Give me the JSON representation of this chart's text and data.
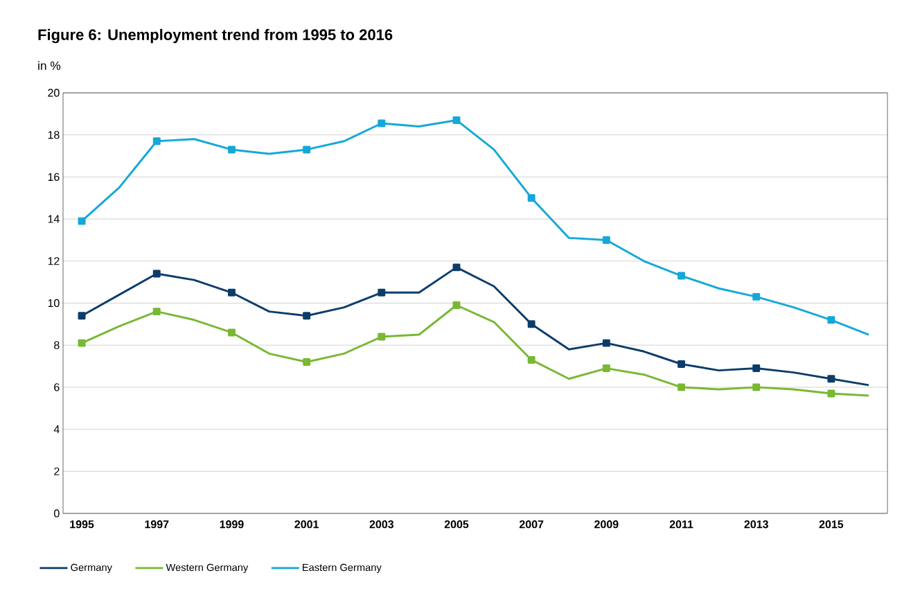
{
  "chart_data": {
    "type": "line",
    "title": "Figure 6: Unemployment trend from 1995 to 2016",
    "ylabel": "in %",
    "x": [
      1995,
      1996,
      1997,
      1998,
      1999,
      2000,
      2001,
      2002,
      2003,
      2004,
      2005,
      2006,
      2007,
      2008,
      2009,
      2010,
      2011,
      2012,
      2013,
      2014,
      2015,
      2016
    ],
    "series": [
      {
        "name": "Germany",
        "color": "#0b3d6b",
        "values": [
          9.4,
          10.4,
          11.4,
          11.1,
          10.5,
          9.6,
          9.4,
          9.8,
          10.5,
          10.5,
          11.7,
          10.8,
          9.0,
          7.8,
          8.1,
          7.7,
          7.1,
          6.8,
          6.9,
          6.7,
          6.4,
          6.1
        ]
      },
      {
        "name": "Western Germany",
        "color": "#78b833",
        "values": [
          8.1,
          8.9,
          9.6,
          9.2,
          8.6,
          7.6,
          7.2,
          7.6,
          8.4,
          8.5,
          9.9,
          9.1,
          7.3,
          6.4,
          6.9,
          6.6,
          6.0,
          5.9,
          6.0,
          5.9,
          5.7,
          5.6
        ]
      },
      {
        "name": "Eastern Germany",
        "color": "#14a8d8",
        "values": [
          13.9,
          15.5,
          17.7,
          17.8,
          17.3,
          17.1,
          17.3,
          17.7,
          18.55,
          18.4,
          18.7,
          17.3,
          15.0,
          13.1,
          13.0,
          12.0,
          11.3,
          10.7,
          10.3,
          9.8,
          9.2,
          8.5
        ]
      }
    ],
    "xlim": [
      1994.5,
      2016.5
    ],
    "xticks": [
      1995,
      1997,
      1999,
      2001,
      2003,
      2005,
      2007,
      2009,
      2011,
      2013,
      2015
    ],
    "ylim": [
      0,
      20
    ],
    "yticks": [
      0,
      2,
      4,
      6,
      8,
      10,
      12,
      14,
      16,
      18,
      20
    ],
    "grid": "y",
    "legend": "bottom",
    "marker": "square",
    "line_style": "solid"
  }
}
